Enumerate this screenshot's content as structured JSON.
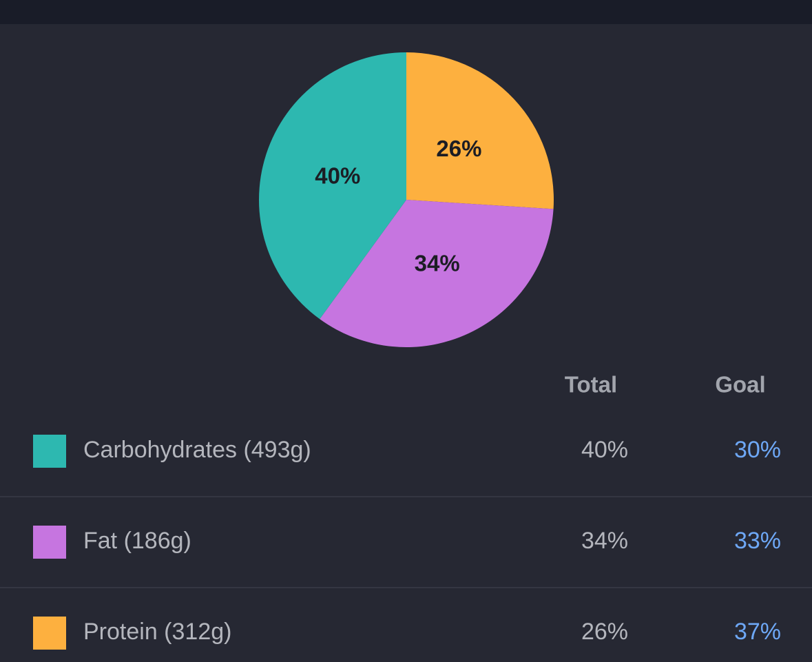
{
  "chart_data": {
    "type": "pie",
    "values": [
      26,
      34,
      40
    ],
    "value_labels": [
      "26%",
      "34%",
      "40%"
    ],
    "colors": [
      "#fdb03f",
      "#c675e0",
      "#2db8b0"
    ]
  },
  "table": {
    "header": [
      "Total",
      "Goal"
    ],
    "rows": [
      {
        "label": "Carbohydrates (493g)",
        "total": "40%",
        "goal": "30%",
        "color": "#2db8b0"
      },
      {
        "label": "Fat (186g)",
        "total": "34%",
        "goal": "33%",
        "color": "#c675e0"
      },
      {
        "label": "Protein (312g)",
        "total": "26%",
        "goal": "37%",
        "color": "#fdb03f"
      }
    ]
  }
}
